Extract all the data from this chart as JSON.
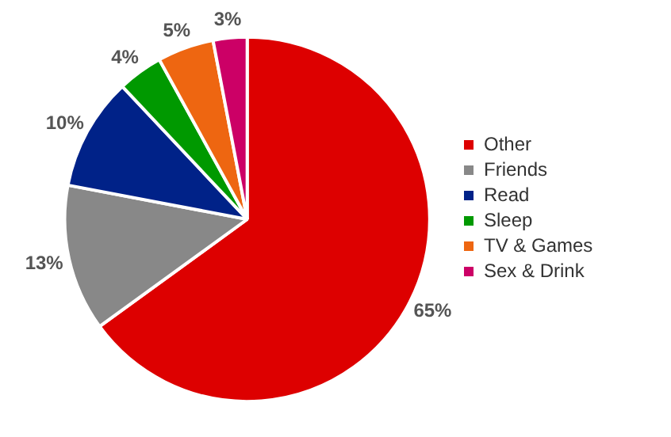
{
  "chart_data": {
    "type": "pie",
    "categories": [
      "Other",
      "Friends",
      "Read",
      "Sleep",
      "TV & Games",
      "Sex & Drink"
    ],
    "values": [
      65,
      13,
      10,
      4,
      5,
      3
    ],
    "value_labels": [
      "65%",
      "13%",
      "10%",
      "4%",
      "5%",
      "3%"
    ],
    "colors": [
      "#dd0000",
      "#888888",
      "#002288",
      "#009900",
      "#ee6611",
      "#cc0066"
    ],
    "legend": "right"
  }
}
